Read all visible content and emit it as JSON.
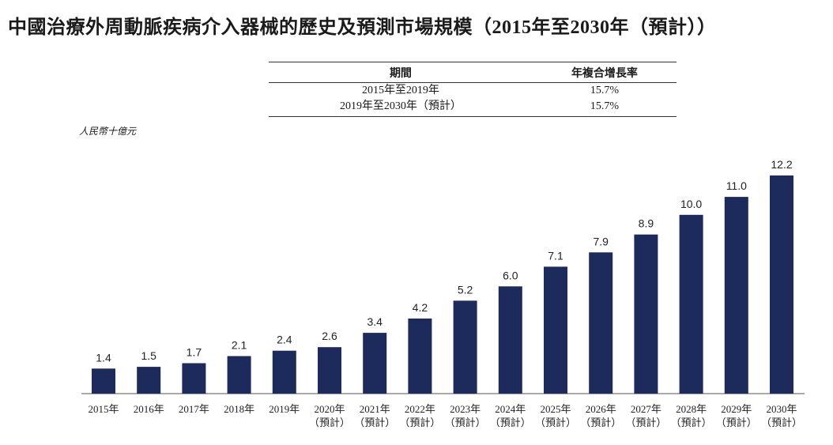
{
  "title": "中國治療外周動脈疾病介入器械的歷史及預測市場規模（2015年至2030年（預計））",
  "cagr_table": {
    "headers": [
      "期間",
      "年複合增長率"
    ],
    "rows": [
      {
        "period": "2015年至2019年",
        "rate": "15.7%"
      },
      {
        "period": "2019年至2030年（預計）",
        "rate": "15.7%"
      }
    ]
  },
  "chart_data": {
    "type": "bar",
    "ylabel": "人民幣十億元",
    "ylim": [
      0,
      13
    ],
    "color": "#1d2a5c",
    "categories": [
      [
        "2015年"
      ],
      [
        "2016年"
      ],
      [
        "2017年"
      ],
      [
        "2018年"
      ],
      [
        "2019年"
      ],
      [
        "2020年",
        "（預計）"
      ],
      [
        "2021年",
        "（預計）"
      ],
      [
        "2022年",
        "（預計）"
      ],
      [
        "2023年",
        "（預計）"
      ],
      [
        "2024年",
        "（預計）"
      ],
      [
        "2025年",
        "（預計）"
      ],
      [
        "2026年",
        "（預計）"
      ],
      [
        "2027年",
        "（預計）"
      ],
      [
        "2028年",
        "（預計）"
      ],
      [
        "2029年",
        "（預計）"
      ],
      [
        "2030年",
        "（預計）"
      ]
    ],
    "values": [
      1.4,
      1.5,
      1.7,
      2.1,
      2.4,
      2.6,
      3.4,
      4.2,
      5.2,
      6.0,
      7.1,
      7.9,
      8.9,
      10.0,
      11.0,
      12.2
    ],
    "value_labels": [
      "1.4",
      "1.5",
      "1.7",
      "2.1",
      "2.4",
      "2.6",
      "3.4",
      "4.2",
      "5.2",
      "6.0",
      "7.1",
      "7.9",
      "8.9",
      "10.0",
      "11.0",
      "12.2"
    ]
  }
}
